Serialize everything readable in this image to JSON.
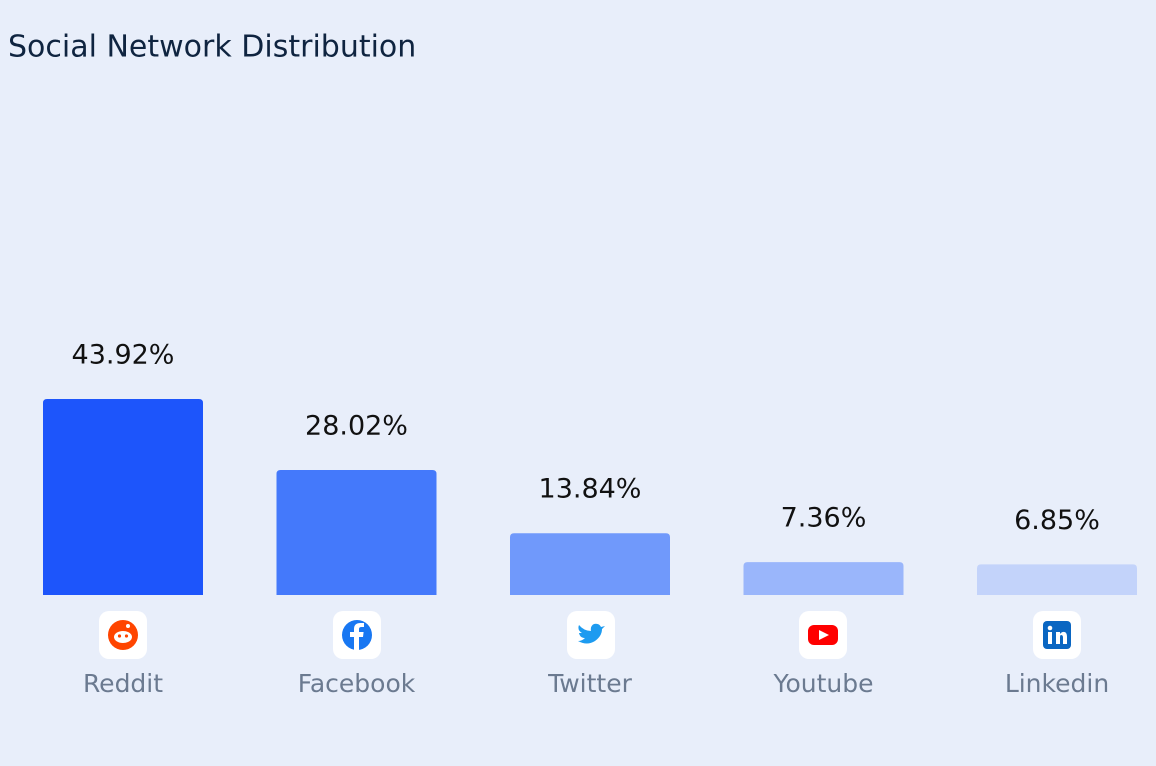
{
  "chart_data": {
    "type": "bar",
    "title": "Social Network Distribution",
    "categories": [
      "Reddit",
      "Facebook",
      "Twitter",
      "Youtube",
      "Linkedin"
    ],
    "values": [
      43.92,
      28.02,
      13.84,
      7.36,
      6.85
    ],
    "value_labels": [
      "43.92%",
      "28.02%",
      "13.84%",
      "7.36%",
      "6.85%"
    ],
    "colors": [
      "#1d55fb",
      "#4479fb",
      "#7099fb",
      "#9ab6fb",
      "#c3d3fa"
    ]
  }
}
